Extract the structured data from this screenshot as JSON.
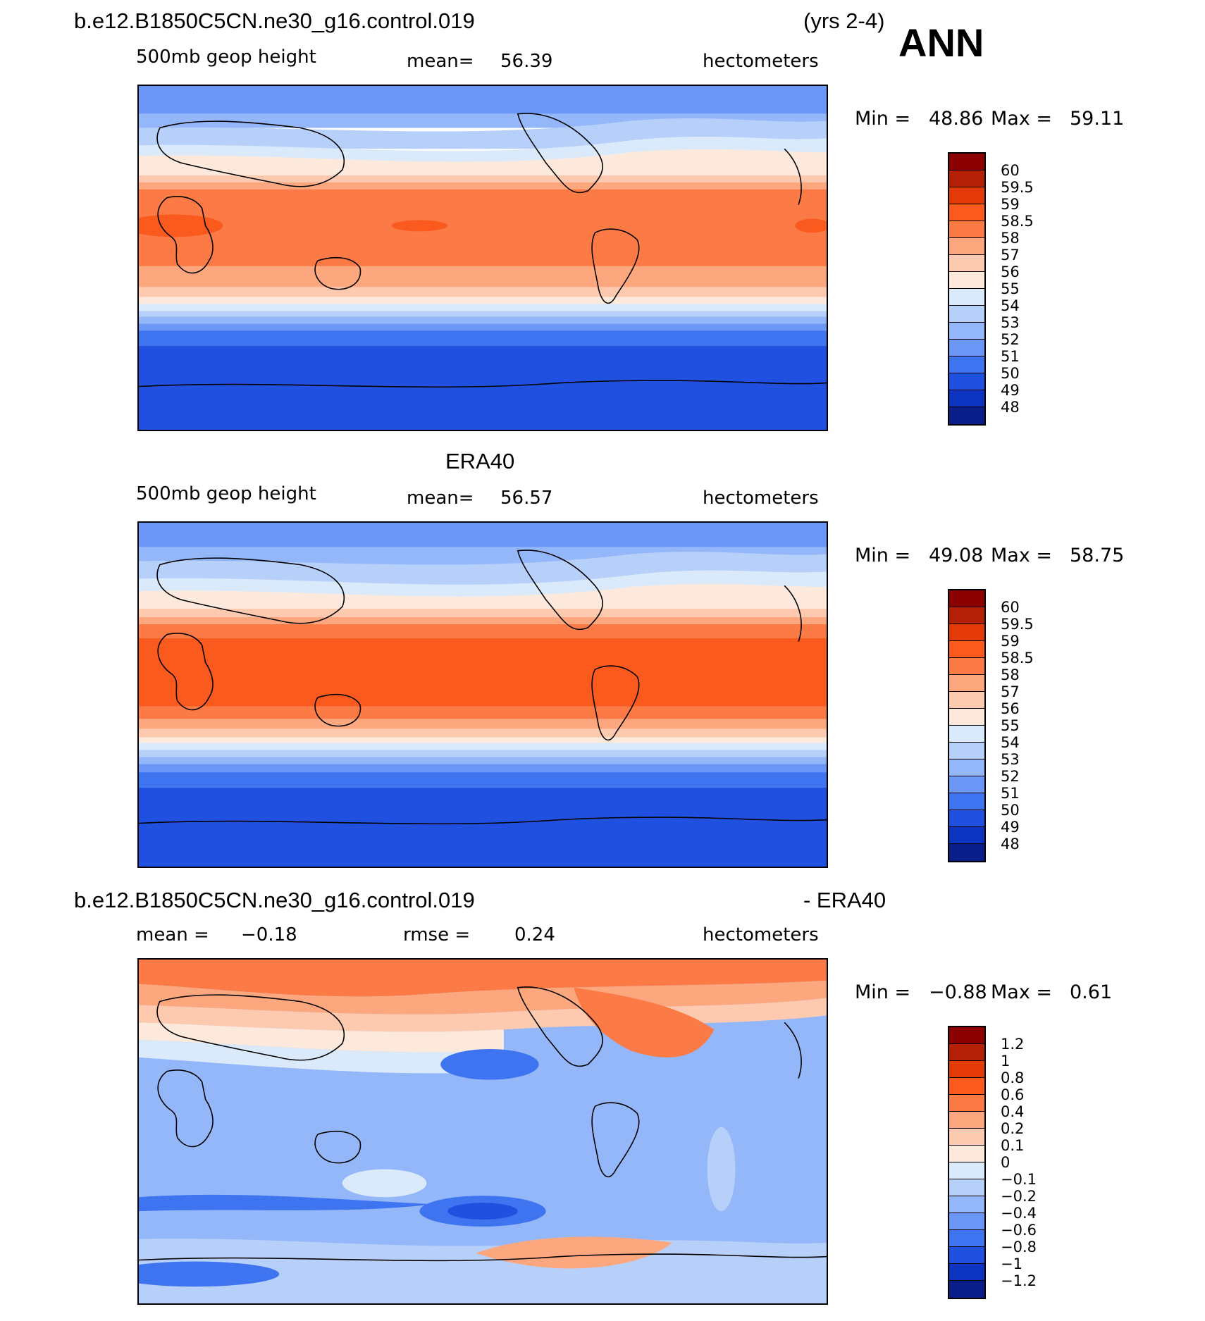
{
  "header": {
    "case_name": "b.e12.B1850C5CN.ne30_g16.control.019",
    "years": "(yrs 2-4)",
    "season": "ANN"
  },
  "panels": [
    {
      "id": "model",
      "variable": "500mb geop height",
      "stat1_label": "mean=",
      "stat1_value": "56.39",
      "units": "hectometers",
      "min_label": "Min =",
      "min_value": "48.86",
      "max_label": "Max =",
      "max_value": "59.11",
      "levels": [
        "60",
        "59.5",
        "59",
        "58.5",
        "58",
        "57",
        "56",
        "55",
        "54",
        "53",
        "52",
        "51",
        "50",
        "49",
        "48"
      ],
      "colors": [
        "#8b0000",
        "#b52106",
        "#e43a0a",
        "#fa5a1e",
        "#fb7a45",
        "#fca77e",
        "#fdcab0",
        "#fde9dc",
        "#dbeafb",
        "#b7d0fa",
        "#94b7fa",
        "#6b98f7",
        "#3f74f0",
        "#2050e0",
        "#0d34c0",
        "#0a1e8a"
      ]
    },
    {
      "id": "obs",
      "title": "ERA40",
      "variable": "500mb geop height",
      "stat1_label": "mean=",
      "stat1_value": "56.57",
      "units": "hectometers",
      "min_label": "Min =",
      "min_value": "49.08",
      "max_label": "Max =",
      "max_value": "58.75",
      "levels": [
        "60",
        "59.5",
        "59",
        "58.5",
        "58",
        "57",
        "56",
        "55",
        "54",
        "53",
        "52",
        "51",
        "50",
        "49",
        "48"
      ],
      "colors": [
        "#8b0000",
        "#b52106",
        "#e43a0a",
        "#fa5a1e",
        "#fb7a45",
        "#fca77e",
        "#fdcab0",
        "#fde9dc",
        "#dbeafb",
        "#b7d0fa",
        "#94b7fa",
        "#6b98f7",
        "#3f74f0",
        "#2050e0",
        "#0d34c0",
        "#0a1e8a"
      ]
    },
    {
      "id": "diff",
      "title_left": "b.e12.B1850C5CN.ne30_g16.control.019",
      "title_right": "- ERA40",
      "stat1_label": "mean =",
      "stat1_value": "−0.18",
      "stat2_label": "rmse =",
      "stat2_value": "0.24",
      "units": "hectometers",
      "min_label": "Min =",
      "min_value": "−0.88",
      "max_label": "Max =",
      "max_value": "0.61",
      "levels": [
        "1.2",
        "1",
        "0.8",
        "0.6",
        "0.4",
        "0.2",
        "0.1",
        "0",
        "−0.1",
        "−0.2",
        "−0.4",
        "−0.6",
        "−0.8",
        "−1",
        "−1.2"
      ],
      "colors": [
        "#8b0000",
        "#b52106",
        "#e43a0a",
        "#fa5a1e",
        "#fb7a45",
        "#fca77e",
        "#fdcab0",
        "#fde9dc",
        "#dbeafb",
        "#b7d0fa",
        "#94b7fa",
        "#6b98f7",
        "#3f74f0",
        "#2050e0",
        "#0d34c0",
        "#0a1e8a"
      ]
    }
  ]
}
